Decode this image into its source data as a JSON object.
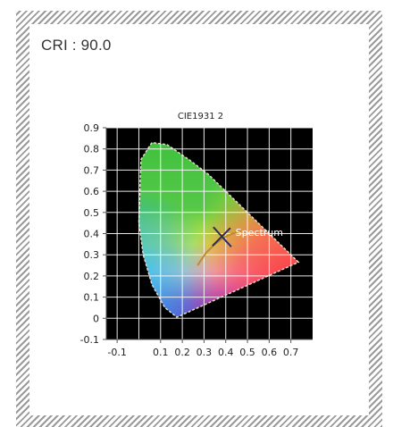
{
  "cri_label": "CRI : 90.0",
  "chart_data": {
    "type": "scatter",
    "title": "CIE1931 2",
    "xlabel": "",
    "ylabel": "",
    "xlim": [
      -0.15,
      0.8
    ],
    "ylim": [
      -0.1,
      0.9
    ],
    "x_ticks": [
      "-0.1",
      "0.1",
      "0.2",
      "0.3",
      "0.4",
      "0.5",
      "0.6",
      "0.7"
    ],
    "y_ticks": [
      "0.9",
      "0.8",
      "0.7",
      "0.6",
      "0.5",
      "0.4",
      "0.3",
      "0.2",
      "0.1",
      "0",
      "-0.1"
    ],
    "grid": true,
    "background_color": "#000000",
    "series": [
      {
        "x": [
          0.735,
          0.64,
          0.55,
          0.47,
          0.4,
          0.32,
          0.23,
          0.13,
          0.06,
          0.01,
          0.005,
          0.0,
          0.02,
          0.06,
          0.12,
          0.175,
          0.735
        ],
        "y": [
          0.265,
          0.36,
          0.45,
          0.53,
          0.6,
          0.68,
          0.75,
          0.82,
          0.83,
          0.75,
          0.6,
          0.45,
          0.3,
          0.16,
          0.05,
          0.005,
          0.265
        ]
      }
    ],
    "annotations": [
      {
        "text": "Spectrum",
        "x": 0.445,
        "y": 0.39
      }
    ],
    "marker_point": {
      "x": 0.38,
      "y": 0.38
    }
  }
}
